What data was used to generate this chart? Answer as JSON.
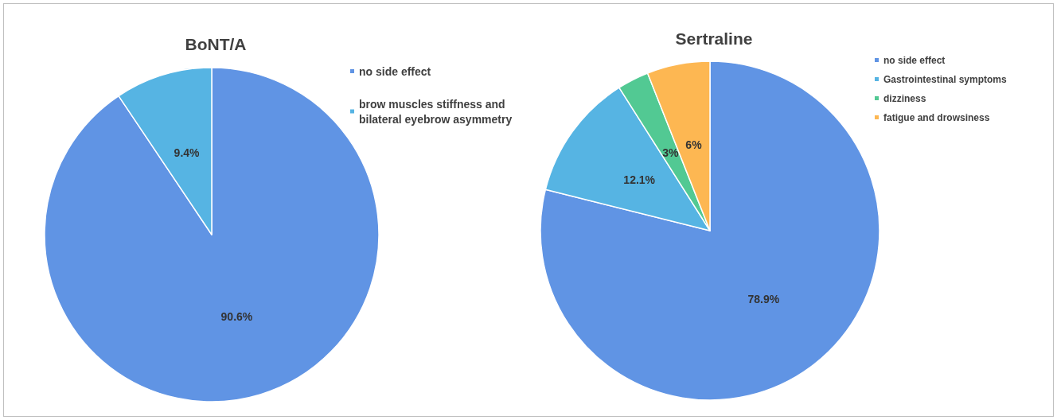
{
  "chart_data": [
    {
      "type": "pie",
      "title": "BoNT/A",
      "categories": [
        "no side effect",
        "brow muscles stiffness and bilateral eyebrow asymmetry"
      ],
      "values": [
        90.6,
        9.4
      ],
      "colors": [
        "#6094e4",
        "#56b4e3"
      ],
      "value_labels": [
        "90.6%",
        "9.4%"
      ],
      "legend": "top right"
    },
    {
      "type": "pie",
      "title": "Sertraline",
      "categories": [
        "no side effect",
        "Gastrointestinal symptoms",
        "dizziness",
        "fatigue and drowsiness"
      ],
      "values": [
        78.9,
        12.1,
        3,
        6
      ],
      "colors": [
        "#6094e4",
        "#56b4e3",
        "#52c993",
        "#fdb752"
      ],
      "value_labels": [
        "78.9%",
        "12.1%",
        "3%",
        "6%"
      ],
      "legend": "top right"
    }
  ]
}
